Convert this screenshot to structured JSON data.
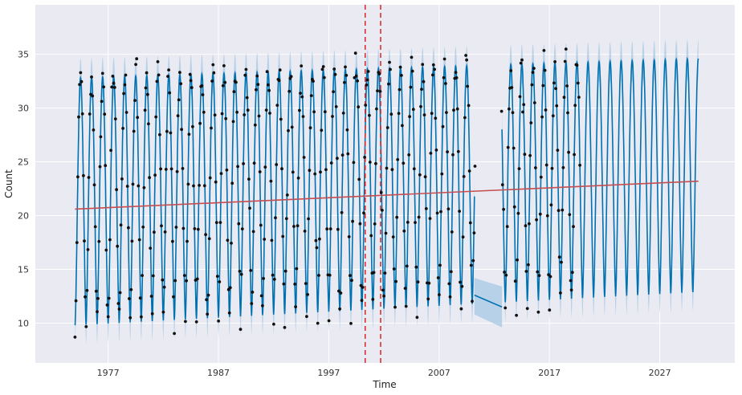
{
  "chart_data": {
    "type": "line",
    "title": "",
    "xlabel": "Time",
    "ylabel": "Count",
    "xlim": [
      1970.4,
      2033.8
    ],
    "ylim": [
      6.3,
      39.6
    ],
    "x_ticks": [
      1977,
      1987,
      1997,
      2007,
      2017,
      2027
    ],
    "y_ticks": [
      10,
      15,
      20,
      25,
      30,
      35
    ],
    "grid": true,
    "legend": "none",
    "colors": {
      "background": "#eaeaf2",
      "grid": "#ffffff",
      "forecast": "#0072b2",
      "interval": "#a6c8e4",
      "observed": "#111111",
      "trend": "#c44e52",
      "changepoint": "#d62728"
    },
    "forecast": {
      "start": 1974.0,
      "end": 2030.5,
      "period_years": 1.0,
      "yhat_peak": 32.8,
      "yhat_peak_late": 34.6,
      "yhat_trough": 9.8,
      "yhat_trough_late": 12.9,
      "interval_half_width": 1.8,
      "gap": {
        "x": [
          2010.2,
          2012.7
        ],
        "yhat": [
          12.6,
          11.5
        ],
        "yhat_lower": [
          10.8,
          9.6
        ],
        "yhat_upper": [
          14.2,
          13.4
        ]
      }
    },
    "trend": {
      "x": [
        1974.0,
        2030.5
      ],
      "y": [
        20.6,
        23.2
      ]
    },
    "changepoints": [
      2000.3,
      2001.7
    ],
    "observed_range": {
      "x": [
        1974.0,
        2019.8
      ],
      "missing_x": [
        2010.3,
        2012.6
      ],
      "y_min": 8.7,
      "y_max": 37.9
    }
  }
}
